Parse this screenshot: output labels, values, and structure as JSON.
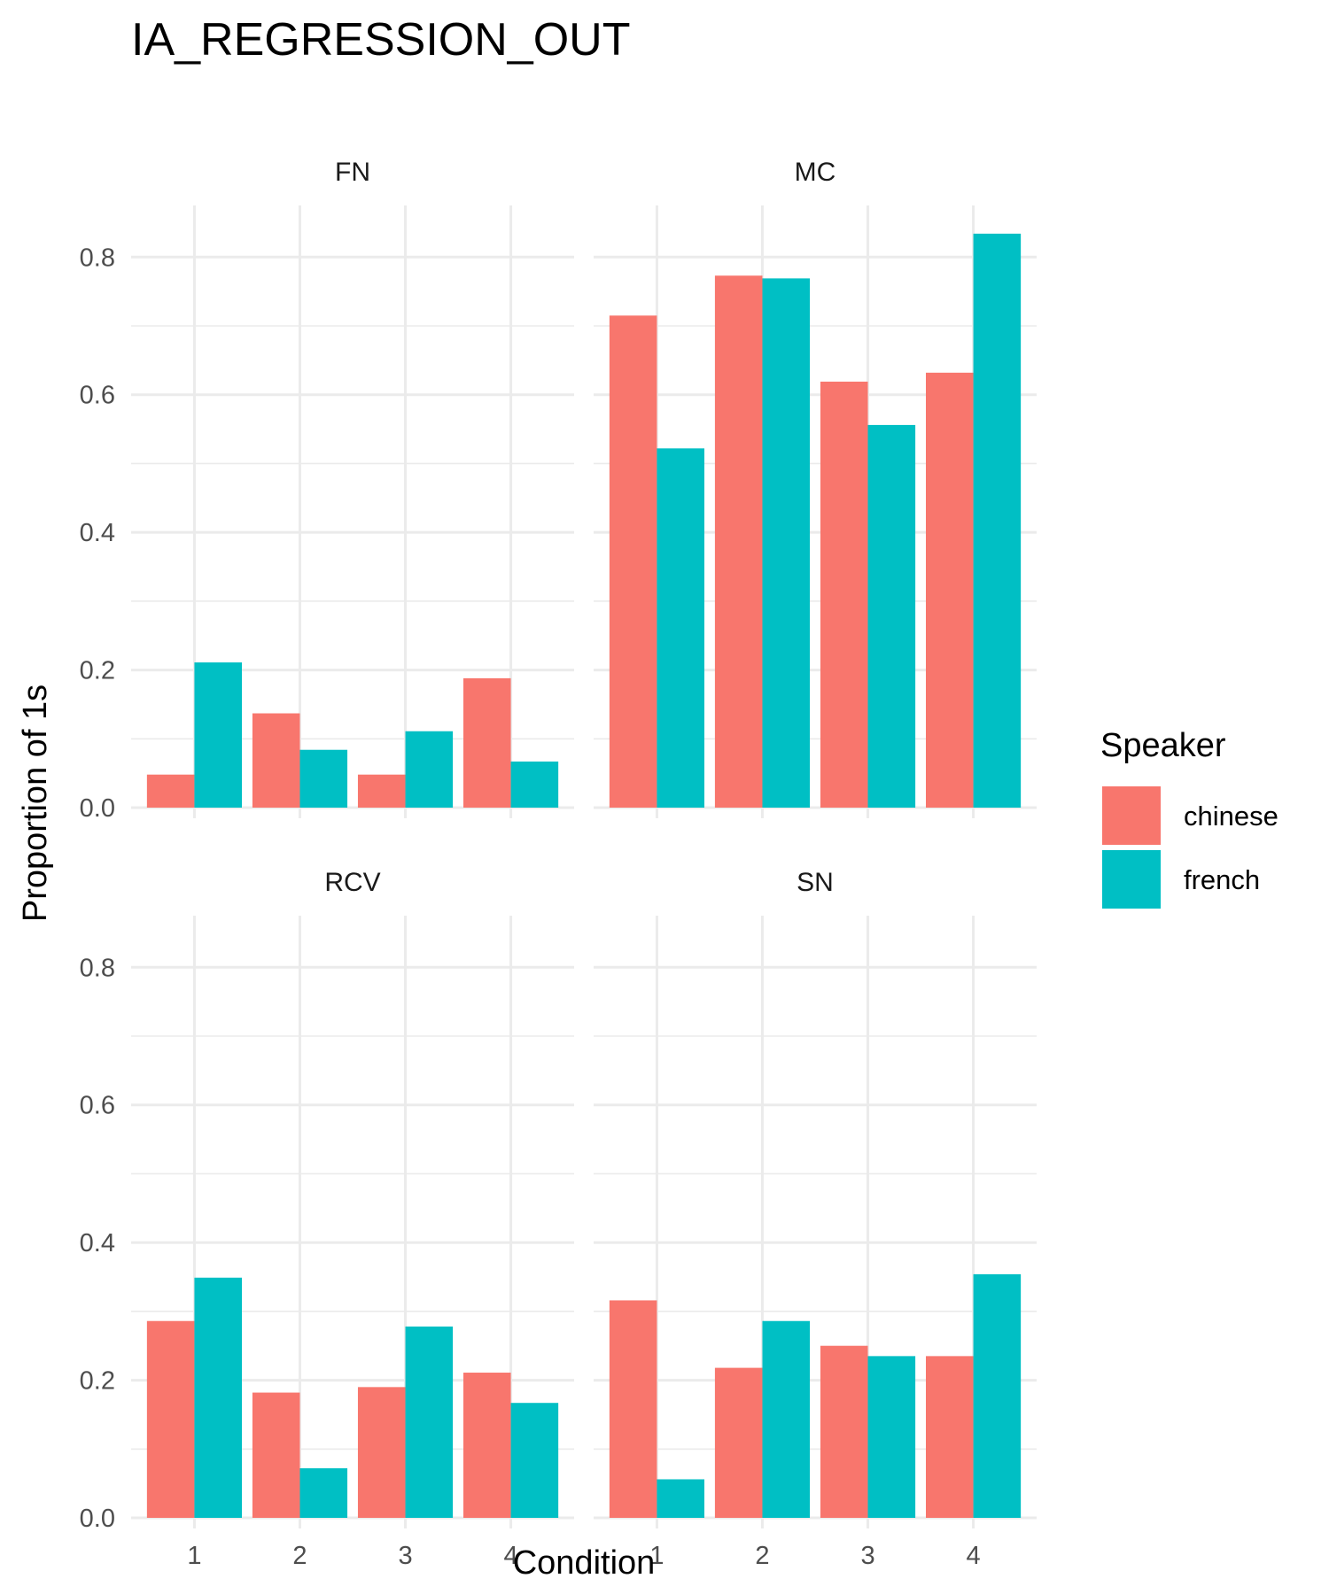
{
  "chart_data": {
    "type": "bar",
    "title": "IA_REGRESSION_OUT",
    "xlabel": "Condition",
    "ylabel": "Proportion of 1s",
    "categories": [
      "1",
      "2",
      "3",
      "4"
    ],
    "yticks": [
      "0.0",
      "0.2",
      "0.4",
      "0.6",
      "0.8"
    ],
    "ylim": [
      0,
      0.875
    ],
    "grid": true,
    "legend": {
      "title": "Speaker",
      "position": "right",
      "entries": [
        {
          "name": "chinese",
          "color": "#F8766D"
        },
        {
          "name": "french",
          "color": "#00BFC4"
        }
      ]
    },
    "facets": [
      {
        "label": "FN",
        "series": [
          {
            "name": "chinese",
            "values": [
              0.048,
              0.137,
              0.048,
              0.188
            ]
          },
          {
            "name": "french",
            "values": [
              0.211,
              0.084,
              0.111,
              0.067
            ]
          }
        ]
      },
      {
        "label": "MC",
        "series": [
          {
            "name": "chinese",
            "values": [
              0.715,
              0.773,
              0.619,
              0.632
            ]
          },
          {
            "name": "french",
            "values": [
              0.522,
              0.769,
              0.556,
              0.834
            ]
          }
        ]
      },
      {
        "label": "RCV",
        "series": [
          {
            "name": "chinese",
            "values": [
              0.286,
              0.182,
              0.19,
              0.211
            ]
          },
          {
            "name": "french",
            "values": [
              0.349,
              0.072,
              0.278,
              0.167
            ]
          }
        ]
      },
      {
        "label": "SN",
        "series": [
          {
            "name": "chinese",
            "values": [
              0.316,
              0.218,
              0.25,
              0.235
            ]
          },
          {
            "name": "french",
            "values": [
              0.056,
              0.286,
              0.235,
              0.354
            ]
          }
        ]
      }
    ]
  }
}
